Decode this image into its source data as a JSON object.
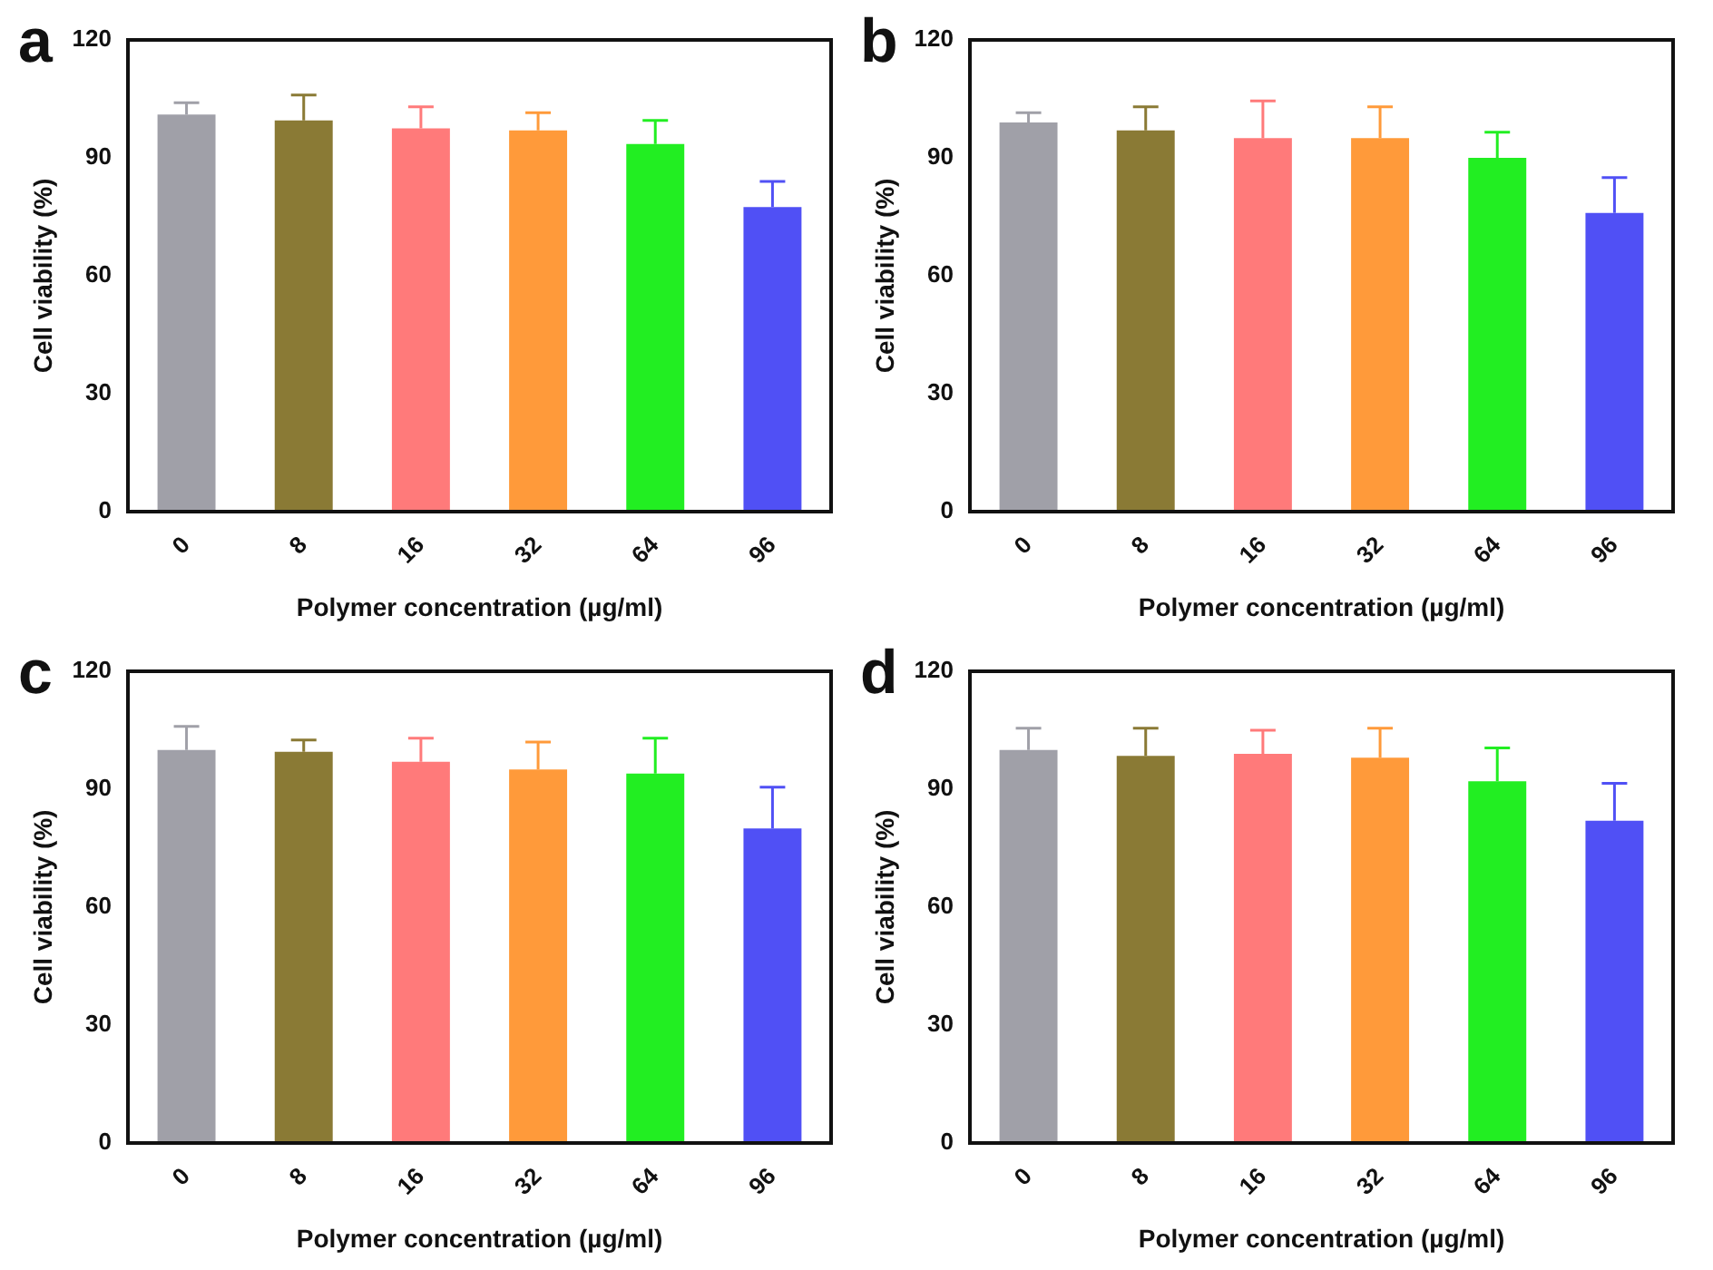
{
  "chart_data": [
    {
      "type": "bar",
      "title": "a",
      "xlabel": "Polymer concentration (µg/ml)",
      "ylabel": "Cell viability (%)",
      "categories": [
        "0",
        "8",
        "16",
        "32",
        "64",
        "96"
      ],
      "values": [
        101,
        99.5,
        97.5,
        97,
        93.5,
        77.5
      ],
      "colors": [
        "#a0a0a8",
        "#8a7a35",
        "#ff7a7a",
        "#ff9a3a",
        "#22ee22",
        "#5050f5"
      ],
      "errors": [
        [
          101,
          104
        ],
        [
          99.5,
          106
        ],
        [
          97.5,
          103
        ],
        [
          97,
          101.5
        ],
        [
          93.5,
          99.5
        ],
        [
          77.5,
          84
        ]
      ],
      "ylim": [
        0,
        120
      ],
      "yticks": [
        0,
        30,
        60,
        90,
        120
      ]
    },
    {
      "type": "bar",
      "title": "b",
      "xlabel": "Polymer concentration (µg/ml)",
      "ylabel": "Cell viability (%)",
      "categories": [
        "0",
        "8",
        "16",
        "32",
        "64",
        "96"
      ],
      "values": [
        99,
        97,
        95,
        95,
        90,
        76
      ],
      "colors": [
        "#a0a0a8",
        "#8a7a35",
        "#ff7a7a",
        "#ff9a3a",
        "#22ee22",
        "#5050f5"
      ],
      "errors": [
        [
          99,
          101.5
        ],
        [
          97,
          103
        ],
        [
          95,
          104.5
        ],
        [
          95,
          103
        ],
        [
          90,
          96.5
        ],
        [
          76,
          85
        ]
      ],
      "ylim": [
        0,
        120
      ],
      "yticks": [
        0,
        30,
        60,
        90,
        120
      ]
    },
    {
      "type": "bar",
      "title": "c",
      "xlabel": "Polymer concentration (µg/ml)",
      "ylabel": "Cell viability (%)",
      "categories": [
        "0",
        "8",
        "16",
        "32",
        "64",
        "96"
      ],
      "values": [
        100,
        99.5,
        97,
        95,
        94,
        80
      ],
      "colors": [
        "#a0a0a8",
        "#8a7a35",
        "#ff7a7a",
        "#ff9a3a",
        "#22ee22",
        "#5050f5"
      ],
      "errors": [
        [
          100,
          106
        ],
        [
          99.5,
          102.5
        ],
        [
          97,
          103
        ],
        [
          95,
          102
        ],
        [
          94,
          103
        ],
        [
          80,
          90.5
        ]
      ],
      "ylim": [
        0,
        120
      ],
      "yticks": [
        0,
        30,
        60,
        90,
        120
      ]
    },
    {
      "type": "bar",
      "title": "d",
      "xlabel": "Polymer concentration (µg/ml)",
      "ylabel": "Cell viability (%)",
      "categories": [
        "0",
        "8",
        "16",
        "32",
        "64",
        "96"
      ],
      "values": [
        100,
        98.5,
        99,
        98,
        92,
        82
      ],
      "colors": [
        "#a0a0a8",
        "#8a7a35",
        "#ff7a7a",
        "#ff9a3a",
        "#22ee22",
        "#5050f5"
      ],
      "errors": [
        [
          100,
          105.5
        ],
        [
          98.5,
          105.5
        ],
        [
          99,
          105
        ],
        [
          98,
          105.5
        ],
        [
          92,
          100.5
        ],
        [
          82,
          91.5
        ]
      ],
      "ylim": [
        0,
        120
      ],
      "yticks": [
        0,
        30,
        60,
        90,
        120
      ]
    }
  ]
}
